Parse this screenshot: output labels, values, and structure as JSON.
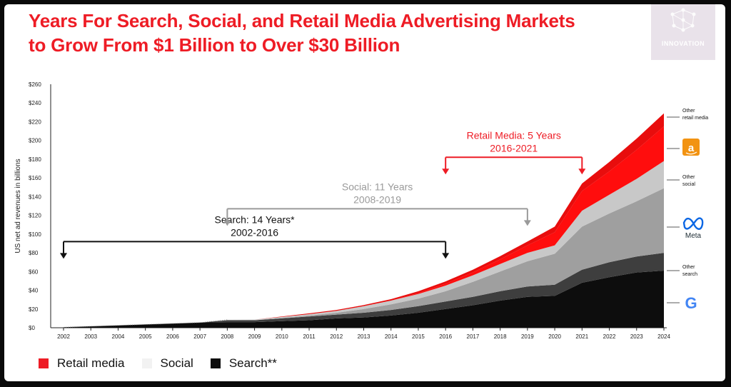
{
  "title_line1": "Years For Search, Social, and Retail Media Advertising Markets",
  "title_line2": "to Grow From $1 Billion to Over $30 Billion",
  "badge_text": "INNOVATION",
  "colors": {
    "accent": "#ee1c25",
    "retail": "#ff1a1a",
    "social": "#c4c4c4",
    "search": "#0d0d0d"
  },
  "legend": [
    {
      "label": "Retail media",
      "color": "#ee1c25"
    },
    {
      "label": "Social",
      "color": "#f2f2f2"
    },
    {
      "label": "Search**",
      "color": "#0d0d0d"
    }
  ],
  "right_labels": {
    "other_retail_media": [
      "Other",
      "retail media"
    ],
    "amazon": "a",
    "other_social": [
      "Other",
      "social"
    ],
    "meta": "Meta",
    "other_search": [
      "Other",
      "search"
    ],
    "google": "G"
  },
  "annotations": [
    {
      "key": "search",
      "line1": "Search: 14 Years*",
      "line2": "2002-2016",
      "from": 2002,
      "to": 2016,
      "level": 92,
      "color": "#111111"
    },
    {
      "key": "social",
      "line1": "Social: 11 Years",
      "line2": "2008-2019",
      "from": 2008,
      "to": 2019,
      "level": 127,
      "color": "#9a9a9a"
    },
    {
      "key": "retail",
      "line1": "Retail Media: 5 Years",
      "line2": "2016-2021",
      "from": 2016,
      "to": 2021,
      "level": 182,
      "color": "#ee1c25"
    }
  ],
  "chart_data": {
    "type": "area",
    "stacked": true,
    "ylabel": "US net ad revenues in billions",
    "xlabel": "",
    "ylim": [
      0,
      260
    ],
    "yticks": [
      "$0",
      "$20",
      "$40",
      "$60",
      "$80",
      "$100",
      "$120",
      "$140",
      "$160",
      "$180",
      "$200",
      "$220",
      "$240",
      "$260"
    ],
    "categories": [
      "2002",
      "2003",
      "2004",
      "2005",
      "2006",
      "2007",
      "2008",
      "2009",
      "2010",
      "2011",
      "2012",
      "2013",
      "2014",
      "2015",
      "2016",
      "2017",
      "2018",
      "2019",
      "2020",
      "2021",
      "2022",
      "2023",
      "2024"
    ],
    "series": [
      {
        "name": "Google",
        "values": [
          0.5,
          1.5,
          2.5,
          3.5,
          4.5,
          5.5,
          6,
          6,
          7,
          8,
          10,
          11,
          13,
          16,
          20,
          24,
          29,
          33,
          34,
          48,
          54,
          59,
          61
        ]
      },
      {
        "name": "Other search",
        "values": [
          0,
          0,
          0,
          0,
          0,
          0,
          2,
          2,
          3,
          4,
          4,
          5,
          6,
          7,
          8,
          9,
          10,
          11,
          12,
          14,
          16,
          17,
          19
        ]
      },
      {
        "name": "Meta",
        "values": [
          0,
          0,
          0,
          0,
          0,
          0,
          0,
          0,
          0.5,
          1,
          2,
          4,
          6,
          8,
          11,
          16,
          21,
          27,
          33,
          46,
          52,
          59,
          69
        ]
      },
      {
        "name": "Other social",
        "values": [
          0,
          0,
          0,
          0,
          0,
          0,
          0.5,
          0.7,
          1,
          1.5,
          2,
          3,
          4,
          5,
          6,
          7,
          8,
          9,
          9,
          17,
          20,
          24,
          29
        ]
      },
      {
        "name": "Amazon",
        "values": [
          0,
          0,
          0,
          0,
          0,
          0,
          0,
          0,
          0,
          0,
          0,
          0,
          0,
          1,
          2,
          3,
          5,
          8,
          14,
          21,
          25,
          31,
          37
        ]
      },
      {
        "name": "Other retail media",
        "values": [
          0,
          0,
          0,
          0,
          0,
          0,
          0,
          0,
          0.5,
          0.8,
          1,
          1.2,
          1.5,
          2,
          2.5,
          3,
          3.5,
          4,
          6,
          8,
          10,
          12,
          14
        ]
      }
    ],
    "groups": {
      "search": [
        "Google",
        "Other search"
      ],
      "social": [
        "Meta",
        "Other social"
      ],
      "retail": [
        "Amazon",
        "Other retail media"
      ]
    },
    "series_colors": [
      "#0d0d0d",
      "#3e3e3e",
      "#9f9f9f",
      "#c8c8c8",
      "#ff0d0d",
      "#e80d0d"
    ],
    "legend_position": "bottom-left",
    "grid": false
  }
}
